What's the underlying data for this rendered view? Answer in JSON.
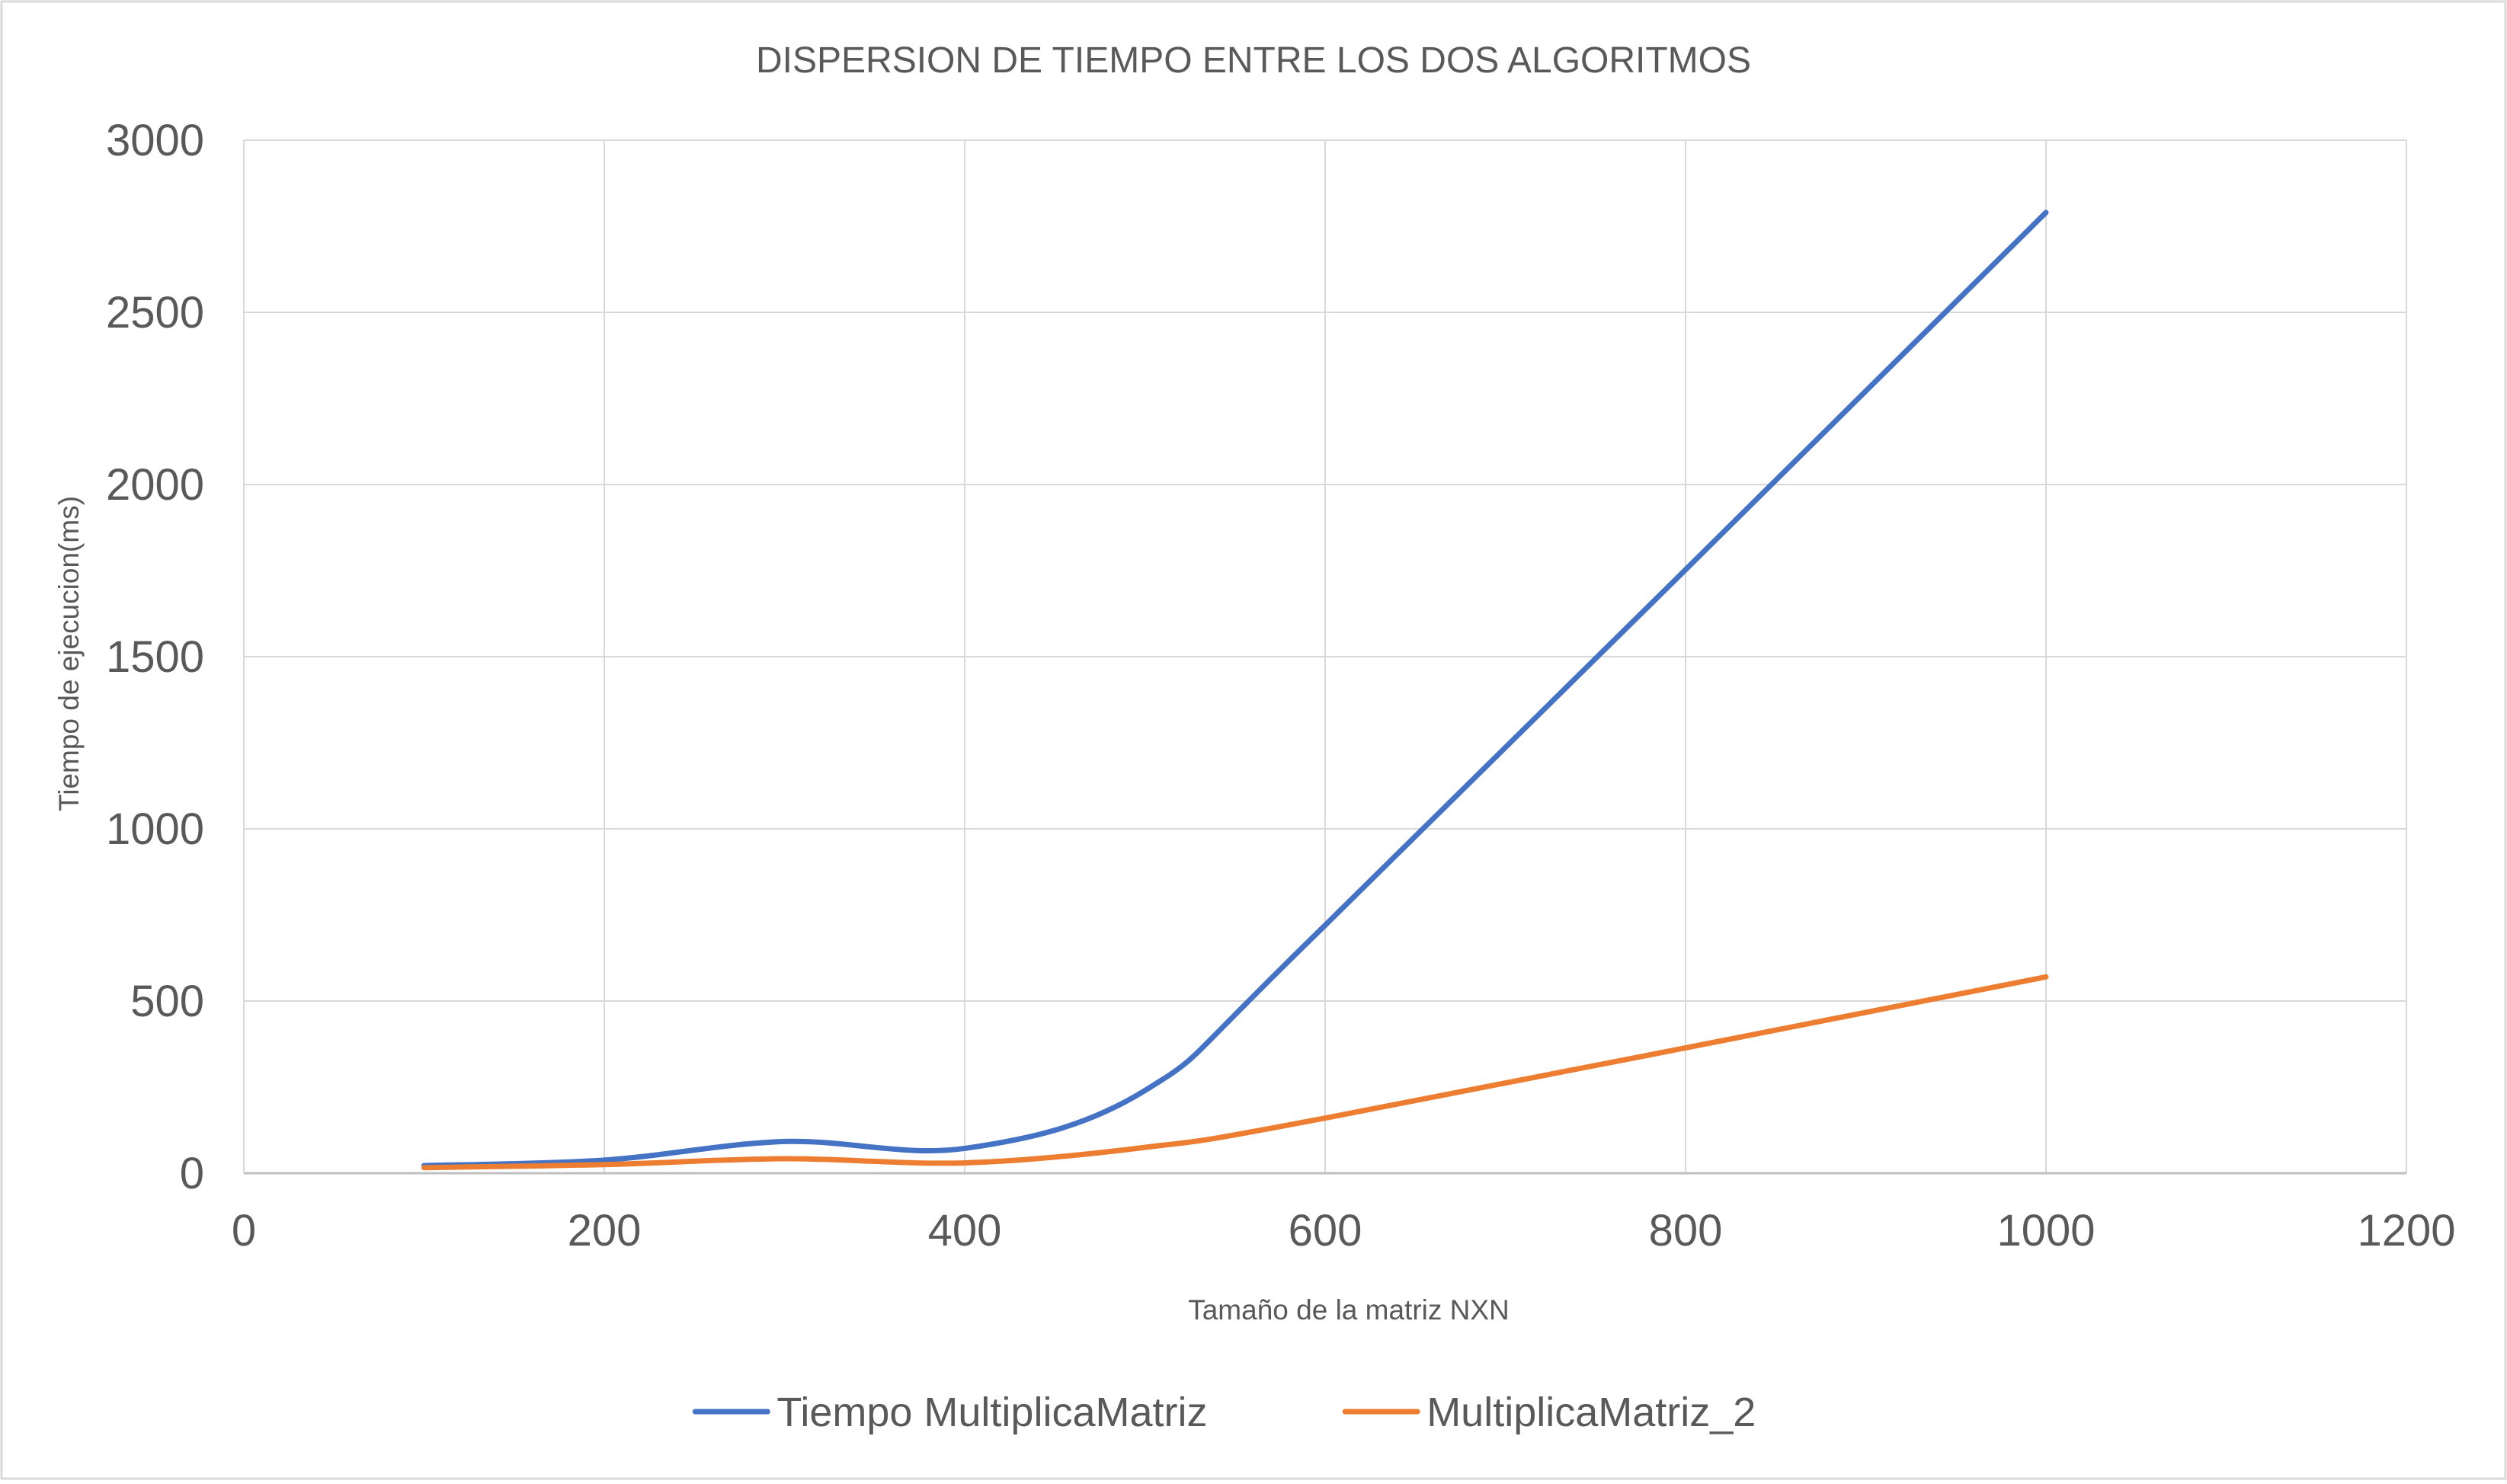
{
  "chart_data": {
    "type": "line",
    "title": "DISPERSION DE TIEMPO ENTRE LOS DOS ALGORITMOS",
    "xlabel": "Tamaño de la matriz NXN",
    "ylabel": "Tiempo de ejecucion(ms)",
    "xlim": [
      0,
      1200
    ],
    "ylim": [
      0,
      3000
    ],
    "x_ticks": [
      0,
      200,
      400,
      600,
      800,
      1000,
      1200
    ],
    "y_ticks": [
      0,
      500,
      1000,
      1500,
      2000,
      2500,
      3000
    ],
    "grid": true,
    "smooth": true,
    "legend_position": "bottom",
    "series": [
      {
        "name": "Tiempo MultiplicaMatriz",
        "color": "#4472C4",
        "points": [
          {
            "x": 100,
            "y": 22
          },
          {
            "x": 200,
            "y": 38
          },
          {
            "x": 300,
            "y": 92
          },
          {
            "x": 400,
            "y": 72
          },
          {
            "x": 500,
            "y": 240
          },
          {
            "x": 600,
            "y": 720
          },
          {
            "x": 1000,
            "y": 2790
          }
        ]
      },
      {
        "name": "MultiplicaMatriz_2",
        "color": "#ED7D31",
        "points": [
          {
            "x": 100,
            "y": 16
          },
          {
            "x": 200,
            "y": 25
          },
          {
            "x": 300,
            "y": 42
          },
          {
            "x": 400,
            "y": 30
          },
          {
            "x": 500,
            "y": 75
          },
          {
            "x": 600,
            "y": 160
          },
          {
            "x": 1000,
            "y": 570
          }
        ]
      }
    ]
  }
}
